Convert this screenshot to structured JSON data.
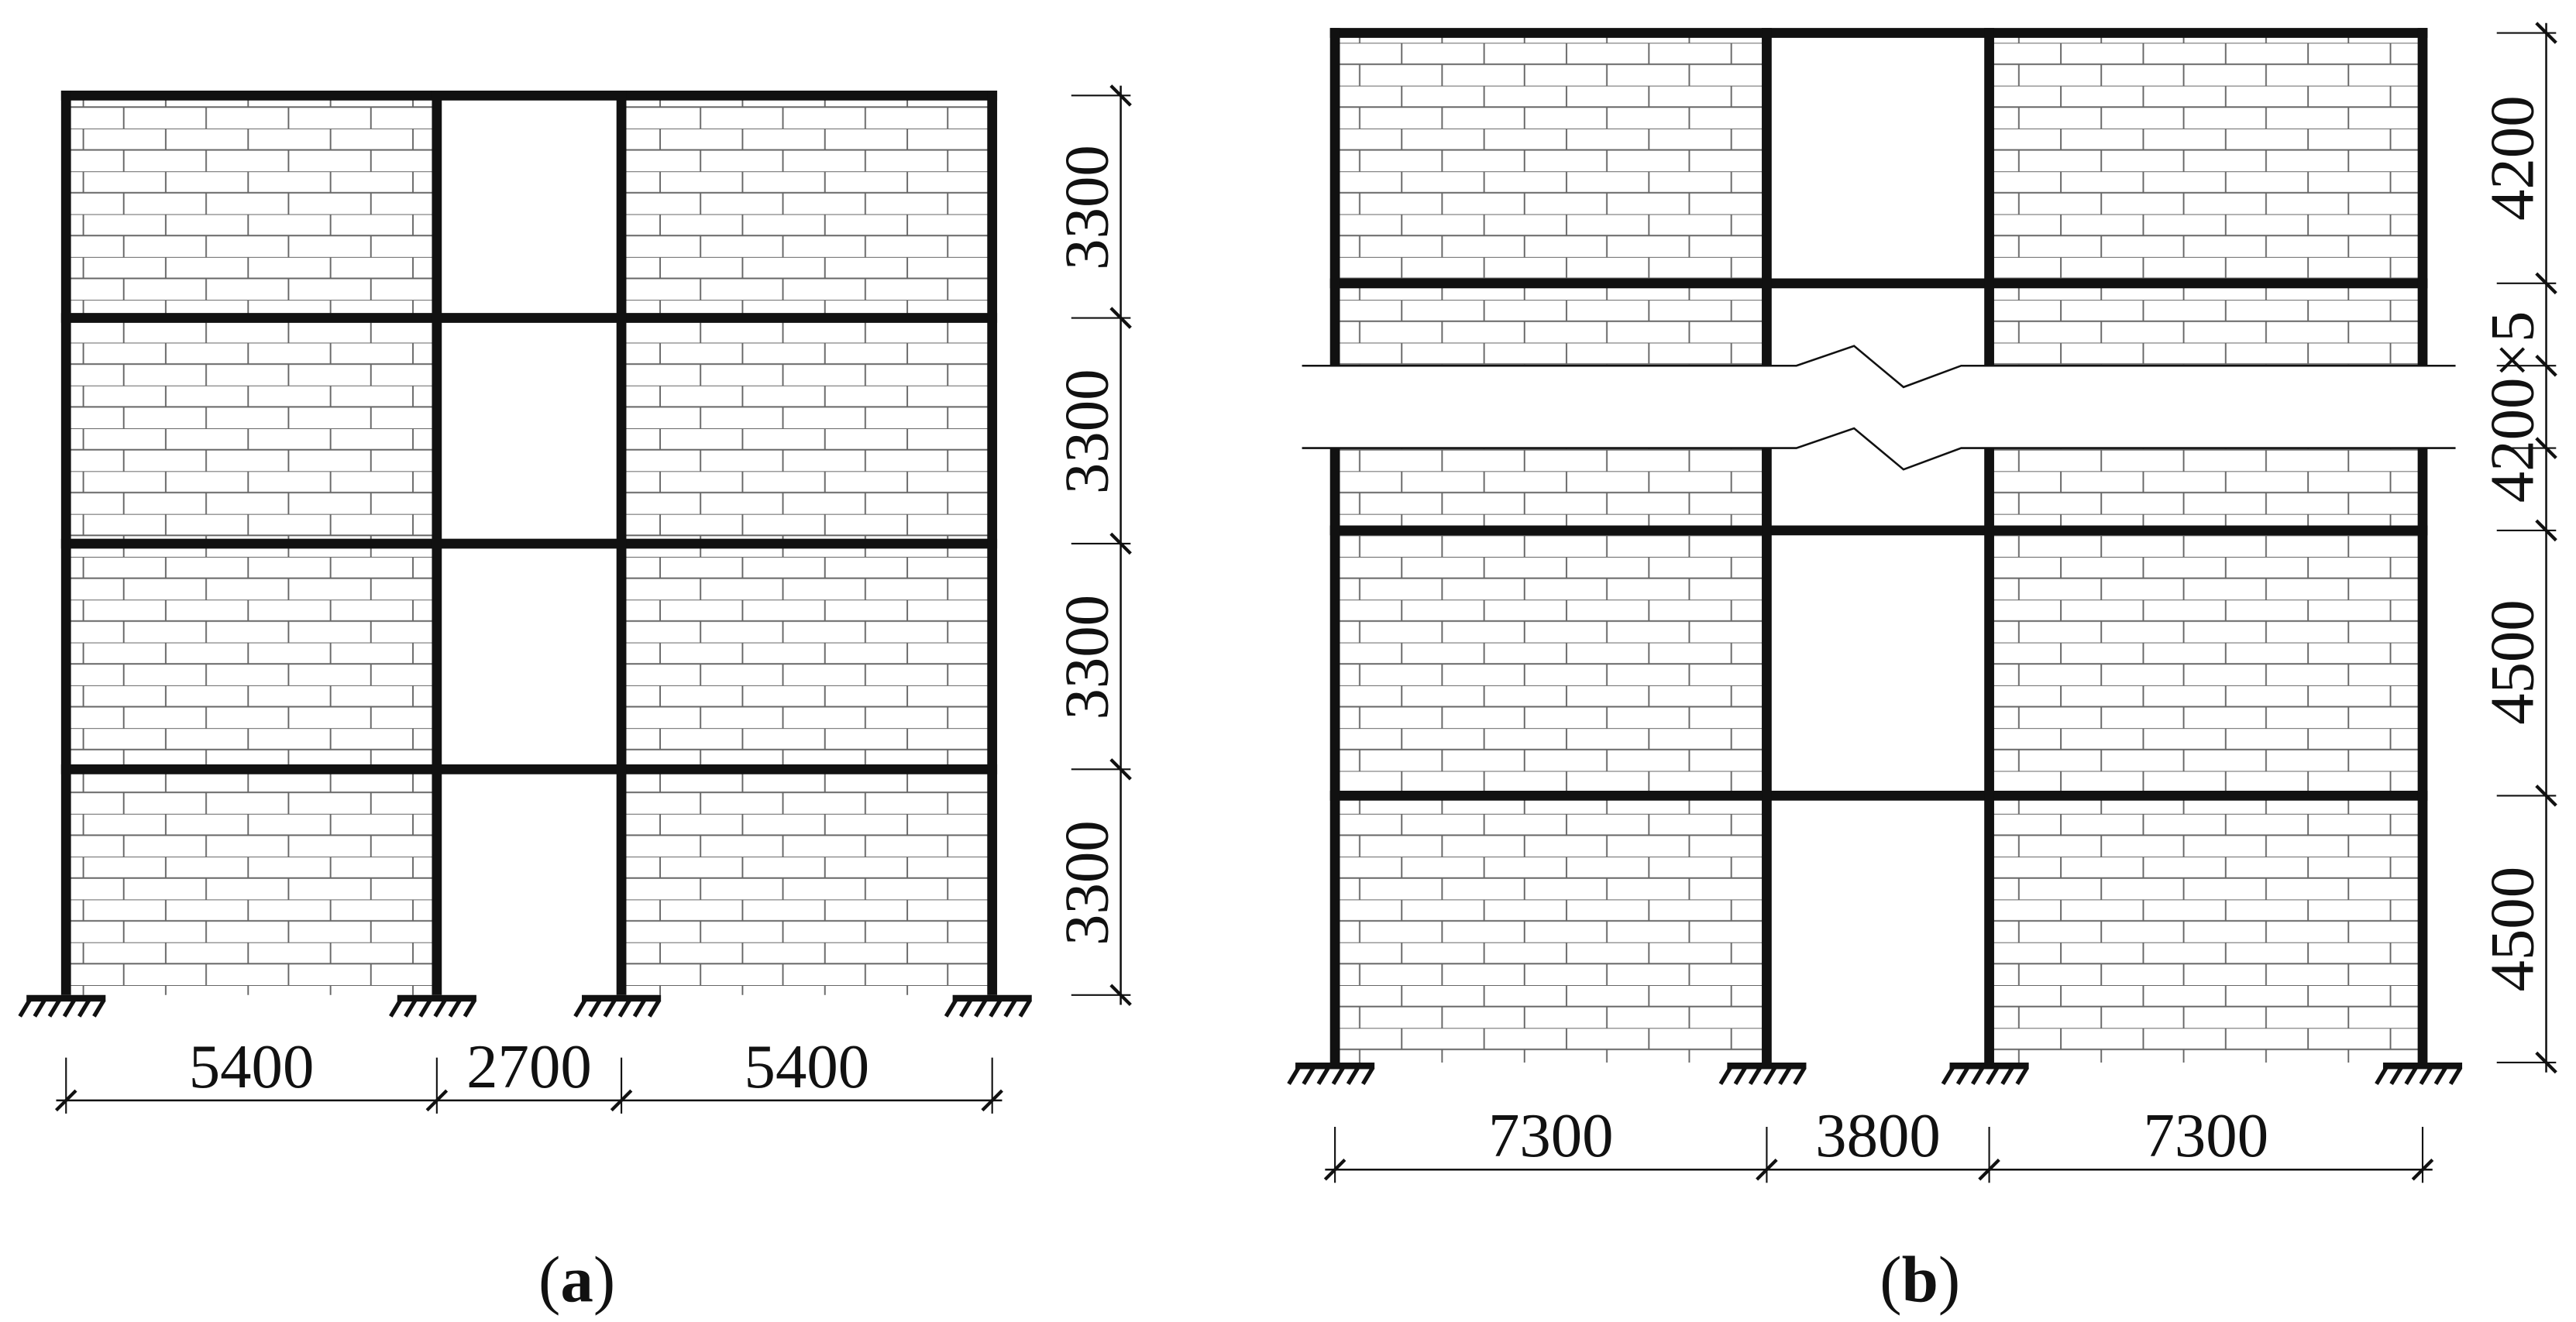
{
  "panel_a": {
    "spans": [
      "5400",
      "2700",
      "5400"
    ],
    "heights": [
      "3300",
      "3300",
      "3300",
      "3300"
    ],
    "caption": [
      "(",
      "a",
      ")"
    ]
  },
  "panel_b": {
    "spans": [
      "7300",
      "3800",
      "7300"
    ],
    "heights": [
      "4200",
      "4200×5",
      "4500",
      "4500"
    ],
    "caption": [
      "(",
      "b",
      ")"
    ]
  }
}
